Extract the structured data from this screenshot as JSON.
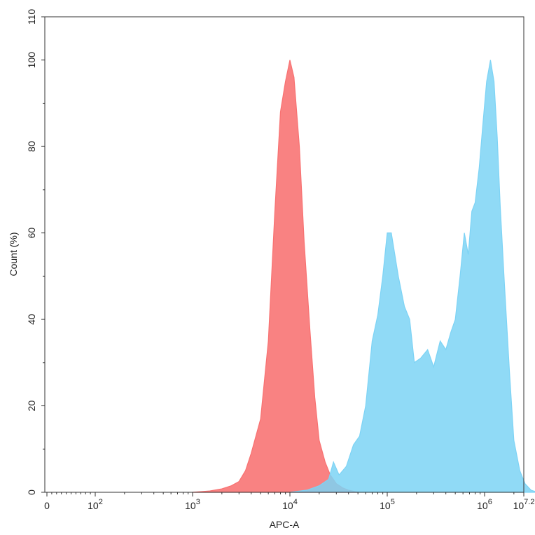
{
  "chart_data": {
    "type": "area",
    "xlabel": "APC-A",
    "ylabel": "Count (%)",
    "x_scale": "log",
    "xlim": [
      0,
      15848932
    ],
    "ylim": [
      0,
      110
    ],
    "grid": false,
    "y_ticks": [
      {
        "value": 0,
        "label": "0"
      },
      {
        "value": 20,
        "label": "20"
      },
      {
        "value": 40,
        "label": "40"
      },
      {
        "value": 60,
        "label": "60"
      },
      {
        "value": 80,
        "label": "80"
      },
      {
        "value": 100,
        "label": "100"
      },
      {
        "value": 110,
        "label": "110"
      }
    ],
    "x_ticks": [
      {
        "value": 0,
        "base": "0",
        "exp": ""
      },
      {
        "value": 100,
        "base": "10",
        "exp": "2"
      },
      {
        "value": 1000,
        "base": "10",
        "exp": "3"
      },
      {
        "value": 10000,
        "base": "10",
        "exp": "4"
      },
      {
        "value": 100000,
        "base": "10",
        "exp": "5"
      },
      {
        "value": 1000000,
        "base": "10",
        "exp": "6"
      },
      {
        "value": 15848932,
        "base": "10",
        "exp": "7.2"
      }
    ],
    "series": [
      {
        "color": "#f87171",
        "x": [
          1000,
          1500,
          2000,
          2500,
          3000,
          3500,
          4000,
          5000,
          6000,
          7000,
          8000,
          9000,
          10000,
          11000,
          12500,
          14000,
          16000,
          18000,
          20000,
          23000,
          26000,
          30000,
          35000,
          40000,
          50000
        ],
        "y": [
          0,
          0.3,
          0.8,
          1.5,
          2.5,
          5,
          9,
          17,
          35,
          65,
          88,
          95,
          100,
          96,
          80,
          58,
          38,
          22,
          12,
          7,
          4,
          2,
          1,
          0.5,
          0
        ]
      },
      {
        "color": "#7dd3f5",
        "x": [
          10000,
          15000,
          20000,
          25000,
          28000,
          32000,
          38000,
          45000,
          52000,
          60000,
          70000,
          80000,
          90000,
          100000,
          110000,
          130000,
          150000,
          170000,
          190000,
          220000,
          260000,
          300000,
          350000,
          400000,
          450000,
          500000,
          560000,
          620000,
          680000,
          740000,
          800000,
          880000,
          960000,
          1050000,
          1150000,
          1250000,
          1350000,
          1450000,
          1600000,
          1800000,
          2000000,
          2300000,
          2600000,
          3000000,
          3500000,
          4000000
        ],
        "y": [
          0,
          0.5,
          1.5,
          3,
          7,
          4,
          6,
          11,
          13,
          20,
          35,
          41,
          50,
          60,
          60,
          50,
          43,
          40,
          30,
          31,
          33,
          29,
          35,
          33,
          37,
          40,
          50,
          60,
          55,
          65,
          67,
          75,
          85,
          95,
          100,
          95,
          82,
          66,
          48,
          28,
          12,
          5,
          2,
          0.5,
          0,
          0
        ]
      }
    ]
  }
}
